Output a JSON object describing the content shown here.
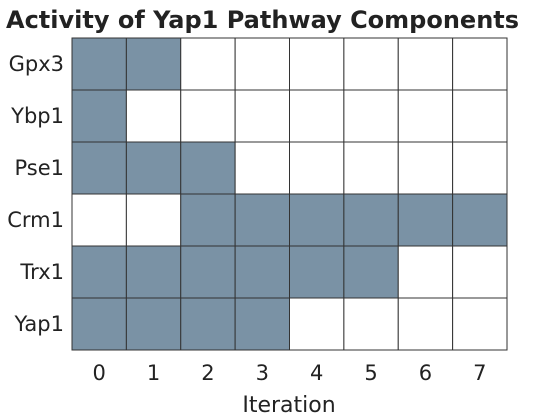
{
  "chart_data": {
    "type": "heatmap",
    "title": "Activity of Yap1 Pathway Components",
    "xlabel": "Iteration",
    "ylabel": "",
    "x": [
      "0",
      "1",
      "2",
      "3",
      "4",
      "5",
      "6",
      "7"
    ],
    "rows": [
      "Gpx3",
      "Ybp1",
      "Pse1",
      "Crm1",
      "Trx1",
      "Yap1"
    ],
    "values": [
      [
        1,
        1,
        0,
        0,
        0,
        0,
        0,
        0
      ],
      [
        1,
        0,
        0,
        0,
        0,
        0,
        0,
        0
      ],
      [
        1,
        1,
        1,
        0,
        0,
        0,
        0,
        0
      ],
      [
        0,
        0,
        1,
        1,
        1,
        1,
        1,
        1
      ],
      [
        1,
        1,
        1,
        1,
        1,
        1,
        0,
        0
      ],
      [
        1,
        1,
        1,
        1,
        0,
        0,
        0,
        0
      ]
    ],
    "colors": {
      "active": "#7a92a5",
      "inactive": "#ffffff",
      "grid": "#333333"
    },
    "legend": "none",
    "grid": true
  }
}
